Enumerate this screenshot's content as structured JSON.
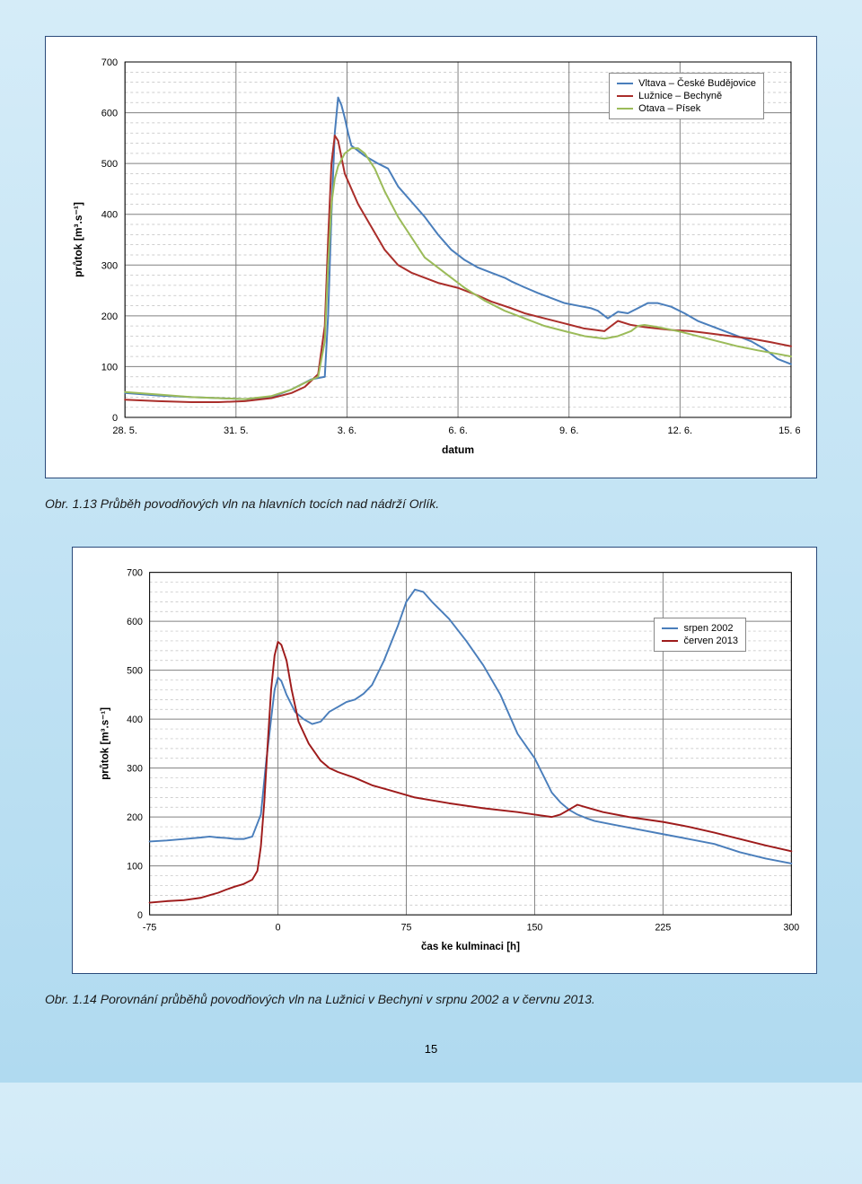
{
  "page_number": "15",
  "chart1": {
    "type": "line",
    "title": "",
    "ylabel": "průtok [m³.s⁻¹]",
    "xlabel": "datum",
    "ylim": [
      0,
      700
    ],
    "ytick_step": 100,
    "y_ticks": [
      0,
      100,
      200,
      300,
      400,
      500,
      600,
      700
    ],
    "y_minor_step": 20,
    "x_categories": [
      "28. 5.",
      "31. 5.",
      "3. 6.",
      "6. 6.",
      "9. 6.",
      "12. 6.",
      "15. 6."
    ],
    "background_color": "#ffffff",
    "major_grid_color": "#808080",
    "minor_grid_color": "#bfbfbf",
    "minor_grid_dash": "3,3",
    "axis_color": "#000000",
    "line_width": 2,
    "label_fontsize": 12,
    "tick_fontsize": 11,
    "legend": {
      "position": "top-right-inside",
      "border_color": "#888888",
      "items": [
        {
          "label": "Vltava – České Budějovice",
          "color": "#4a7ebb"
        },
        {
          "label": "Lužnice – Bechyně",
          "color": "#aa2e2a"
        },
        {
          "label": "Otava – Písek",
          "color": "#9bbb59"
        }
      ]
    },
    "series": [
      {
        "name": "Vltava – České Budějovice",
        "color": "#4a7ebb",
        "x_frac": [
          0.0,
          0.05,
          0.1,
          0.14,
          0.18,
          0.22,
          0.25,
          0.28,
          0.3,
          0.305,
          0.31,
          0.315,
          0.32,
          0.325,
          0.33,
          0.335,
          0.34,
          0.36,
          0.38,
          0.395,
          0.41,
          0.43,
          0.45,
          0.47,
          0.49,
          0.51,
          0.53,
          0.55,
          0.57,
          0.58,
          0.6,
          0.62,
          0.64,
          0.66,
          0.68,
          0.7,
          0.71,
          0.725,
          0.74,
          0.755,
          0.77,
          0.785,
          0.8,
          0.82,
          0.84,
          0.86,
          0.88,
          0.9,
          0.92,
          0.94,
          0.96,
          0.98,
          1.0
        ],
        "y": [
          48,
          43,
          40,
          38,
          36,
          40,
          55,
          75,
          80,
          200,
          400,
          560,
          630,
          615,
          590,
          560,
          535,
          515,
          500,
          490,
          455,
          425,
          395,
          360,
          330,
          310,
          295,
          285,
          275,
          268,
          256,
          245,
          235,
          225,
          220,
          215,
          210,
          195,
          208,
          205,
          215,
          225,
          225,
          218,
          205,
          190,
          180,
          170,
          160,
          150,
          135,
          115,
          105
        ]
      },
      {
        "name": "Lužnice – Bechyně",
        "color": "#aa2e2a",
        "x_frac": [
          0.0,
          0.05,
          0.1,
          0.14,
          0.18,
          0.22,
          0.25,
          0.27,
          0.29,
          0.3,
          0.305,
          0.31,
          0.315,
          0.32,
          0.33,
          0.35,
          0.37,
          0.39,
          0.41,
          0.43,
          0.45,
          0.47,
          0.5,
          0.53,
          0.55,
          0.58,
          0.6,
          0.63,
          0.66,
          0.69,
          0.72,
          0.73,
          0.74,
          0.76,
          0.78,
          0.8,
          0.82,
          0.85,
          0.88,
          0.91,
          0.94,
          0.97,
          1.0
        ],
        "y": [
          35,
          32,
          30,
          30,
          32,
          38,
          48,
          60,
          85,
          180,
          350,
          500,
          555,
          545,
          480,
          420,
          375,
          330,
          300,
          285,
          275,
          265,
          255,
          240,
          228,
          215,
          205,
          195,
          185,
          175,
          170,
          180,
          190,
          182,
          178,
          175,
          172,
          170,
          165,
          160,
          155,
          148,
          140
        ]
      },
      {
        "name": "Otava – Písek",
        "color": "#9bbb59",
        "x_frac": [
          0.0,
          0.05,
          0.1,
          0.14,
          0.18,
          0.22,
          0.25,
          0.27,
          0.29,
          0.3,
          0.305,
          0.31,
          0.315,
          0.32,
          0.33,
          0.34,
          0.35,
          0.36,
          0.375,
          0.39,
          0.41,
          0.43,
          0.45,
          0.48,
          0.51,
          0.54,
          0.57,
          0.6,
          0.63,
          0.66,
          0.69,
          0.72,
          0.74,
          0.76,
          0.77,
          0.78,
          0.8,
          0.83,
          0.86,
          0.89,
          0.92,
          0.95,
          0.98,
          1.0
        ],
        "y": [
          50,
          45,
          40,
          38,
          36,
          42,
          55,
          68,
          80,
          150,
          300,
          420,
          470,
          495,
          520,
          530,
          530,
          520,
          490,
          445,
          395,
          355,
          315,
          285,
          255,
          230,
          210,
          195,
          180,
          170,
          160,
          155,
          160,
          170,
          180,
          182,
          178,
          170,
          160,
          150,
          140,
          132,
          125,
          120
        ]
      }
    ]
  },
  "caption1": "Obr. 1.13 Průběh povodňových vln na hlavních tocích nad nádrží Orlík.",
  "chart2": {
    "type": "line",
    "title": "",
    "ylabel": "průtok [m³.s⁻¹]",
    "xlabel": "čas ke kulminaci [h]",
    "ylim": [
      0,
      700
    ],
    "ytick_step": 100,
    "y_ticks": [
      0,
      100,
      200,
      300,
      400,
      500,
      600,
      700
    ],
    "y_minor_step": 20,
    "xlim": [
      -75,
      300
    ],
    "x_ticks": [
      -75,
      0,
      75,
      150,
      225,
      300
    ],
    "background_color": "#ffffff",
    "major_grid_color": "#808080",
    "minor_grid_color": "#bfbfbf",
    "minor_grid_dash": "3,3",
    "axis_color": "#000000",
    "line_width": 2,
    "label_fontsize": 12,
    "tick_fontsize": 11,
    "legend": {
      "position": "top-right-inside",
      "border_color": "#888888",
      "items": [
        {
          "label": "srpen 2002",
          "color": "#4a7ebb"
        },
        {
          "label": "červen 2013",
          "color": "#9e1b1b"
        }
      ]
    },
    "series": [
      {
        "name": "srpen 2002",
        "color": "#4a7ebb",
        "x": [
          -75,
          -65,
          -55,
          -45,
          -40,
          -35,
          -30,
          -25,
          -20,
          -15,
          -10,
          -7,
          -4,
          -2,
          0,
          2,
          5,
          10,
          15,
          20,
          25,
          30,
          35,
          40,
          45,
          50,
          55,
          62,
          70,
          75,
          80,
          85,
          90,
          100,
          110,
          120,
          130,
          140,
          150,
          155,
          160,
          165,
          170,
          175,
          180,
          185,
          195,
          210,
          225,
          240,
          255,
          270,
          285,
          300
        ],
        "y": [
          150,
          152,
          155,
          158,
          160,
          158,
          157,
          155,
          155,
          160,
          205,
          310,
          400,
          460,
          485,
          478,
          450,
          415,
          400,
          390,
          395,
          415,
          425,
          435,
          440,
          452,
          470,
          520,
          590,
          640,
          665,
          660,
          640,
          605,
          560,
          510,
          450,
          370,
          320,
          285,
          250,
          230,
          215,
          205,
          198,
          192,
          185,
          175,
          165,
          155,
          145,
          128,
          115,
          105
        ]
      },
      {
        "name": "červen 2013",
        "color": "#9e1b1b",
        "x": [
          -75,
          -65,
          -55,
          -45,
          -40,
          -35,
          -30,
          -25,
          -20,
          -15,
          -12,
          -10,
          -8,
          -6,
          -4,
          -2,
          0,
          2,
          5,
          8,
          12,
          18,
          25,
          30,
          35,
          45,
          55,
          65,
          80,
          100,
          120,
          140,
          150,
          160,
          165,
          170,
          175,
          180,
          190,
          205,
          225,
          240,
          255,
          270,
          285,
          300
        ],
        "y": [
          25,
          28,
          30,
          35,
          40,
          45,
          52,
          58,
          63,
          72,
          90,
          140,
          230,
          350,
          460,
          530,
          558,
          552,
          520,
          460,
          395,
          350,
          315,
          300,
          292,
          280,
          265,
          255,
          240,
          228,
          218,
          210,
          205,
          200,
          205,
          215,
          225,
          220,
          210,
          200,
          190,
          180,
          168,
          155,
          142,
          130
        ]
      }
    ]
  },
  "caption2": "Obr. 1.14 Porovnání průběhů povodňových vln na Lužnici v Bechyni v srpnu 2002 a v červnu 2013."
}
